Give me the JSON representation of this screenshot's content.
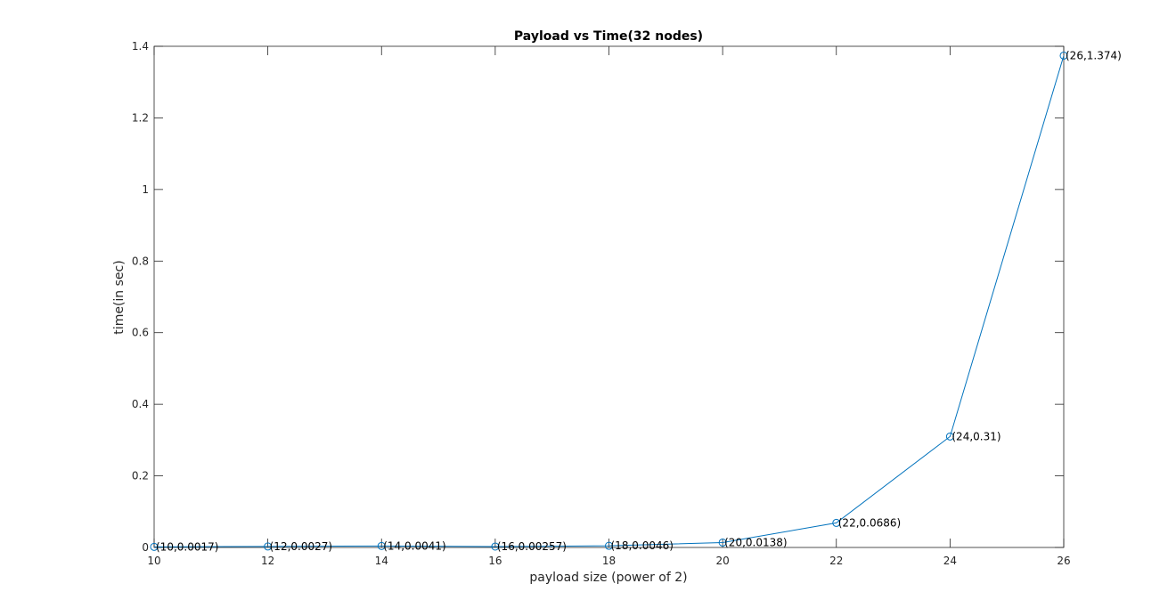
{
  "chart_data": {
    "type": "line",
    "title": "Payload vs Time(32 nodes)",
    "xlabel": "payload size (power of 2)",
    "ylabel": "time(in sec)",
    "xlim": [
      10,
      26
    ],
    "ylim": [
      0,
      1.4
    ],
    "x_ticks": [
      "10",
      "12",
      "14",
      "16",
      "18",
      "20",
      "22",
      "24",
      "26"
    ],
    "y_ticks": [
      "0",
      "0.2",
      "0.4",
      "0.6",
      "0.8",
      "1",
      "1.2",
      "1.4"
    ],
    "grid": false,
    "marker": "circle",
    "series_color": "#0072BD",
    "series": [
      {
        "x": [
          10,
          12,
          14,
          16,
          18,
          20,
          22,
          24,
          26
        ],
        "y": [
          0.0017,
          0.0027,
          0.0041,
          0.00257,
          0.0046,
          0.0138,
          0.0686,
          0.31,
          1.374
        ],
        "labels": [
          "(10,0.0017)",
          "(12,0.0027)",
          "(14,0.0041)",
          "(16,0.00257)",
          "(18,0.0046)",
          "(20,0.0138)",
          "(22,0.0686)",
          "(24,0.31)",
          "(26,1.374)"
        ]
      }
    ]
  }
}
